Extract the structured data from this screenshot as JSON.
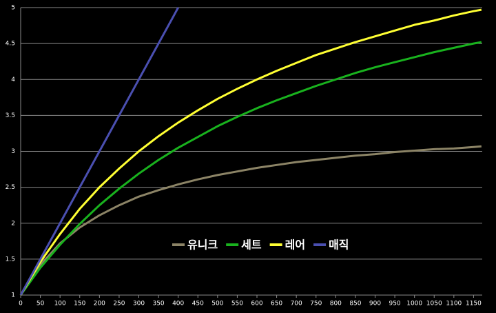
{
  "chart_data": {
    "type": "line",
    "x": [
      0,
      50,
      100,
      150,
      200,
      250,
      300,
      350,
      400,
      450,
      500,
      550,
      600,
      650,
      700,
      750,
      800,
      850,
      900,
      950,
      1000,
      1050,
      1100,
      1150,
      1170
    ],
    "series": [
      {
        "name": "유니크",
        "color": "#8c8466",
        "values": [
          1,
          1.42,
          1.72,
          1.94,
          2.11,
          2.25,
          2.37,
          2.46,
          2.54,
          2.61,
          2.67,
          2.72,
          2.77,
          2.81,
          2.85,
          2.88,
          2.91,
          2.94,
          2.96,
          2.99,
          3.01,
          3.03,
          3.04,
          3.06,
          3.07
        ]
      },
      {
        "name": "세트",
        "color": "#19b21e",
        "values": [
          1,
          1.38,
          1.7,
          1.99,
          2.25,
          2.48,
          2.69,
          2.88,
          3.05,
          3.2,
          3.35,
          3.48,
          3.6,
          3.71,
          3.81,
          3.91,
          4.0,
          4.09,
          4.17,
          4.24,
          4.31,
          4.38,
          4.44,
          4.5,
          4.52
        ]
      },
      {
        "name": "레어",
        "color": "#ffff33",
        "values": [
          1,
          1.46,
          1.85,
          2.2,
          2.5,
          2.76,
          3.0,
          3.21,
          3.4,
          3.57,
          3.73,
          3.87,
          4.0,
          4.12,
          4.23,
          4.34,
          4.43,
          4.52,
          4.6,
          4.68,
          4.76,
          4.82,
          4.89,
          4.95,
          4.97
        ]
      },
      {
        "name": "매직",
        "color": "#4a4fb0",
        "values": [
          1,
          1.5,
          2,
          2.5,
          3,
          3.5,
          4,
          4.5,
          5,
          null,
          null,
          null,
          null,
          null,
          null,
          null,
          null,
          null,
          null,
          null,
          null,
          null,
          null,
          null,
          null
        ]
      }
    ],
    "xlim": [
      0,
      1172
    ],
    "xticks": [
      0,
      50,
      100,
      150,
      200,
      250,
      300,
      350,
      400,
      450,
      500,
      550,
      600,
      650,
      700,
      750,
      800,
      850,
      900,
      950,
      1000,
      1050,
      1100,
      1150
    ],
    "ylim": [
      1,
      5
    ],
    "yticks": [
      1,
      1.5,
      2,
      2.5,
      3,
      3.5,
      4,
      4.5,
      5
    ],
    "grid": true
  }
}
